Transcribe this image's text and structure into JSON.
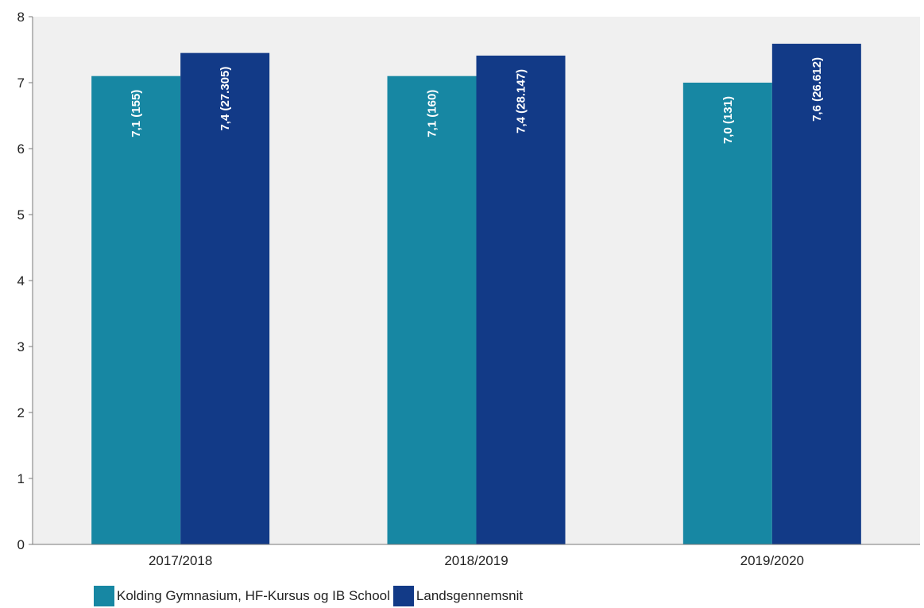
{
  "chart_data": {
    "type": "bar",
    "categories": [
      "2017/2018",
      "2018/2019",
      "2019/2020"
    ],
    "ylim": [
      0,
      8
    ],
    "yticks": [
      "0",
      "1",
      "2",
      "3",
      "4",
      "5",
      "6",
      "7",
      "8"
    ],
    "grid": false,
    "legend_position": "bottom-left",
    "series": [
      {
        "name": "Kolding Gymnasium, HF-Kursus og IB School",
        "color": "#1787a3",
        "values": [
          7.1,
          7.1,
          7.0
        ],
        "labels": [
          "7,1 (155)",
          "7,1 (160)",
          "7,0 (131)"
        ]
      },
      {
        "name": "Landsgennemsnit",
        "color": "#123a87",
        "values": [
          7.45,
          7.41,
          7.59
        ],
        "labels": [
          "7,4 (27.305)",
          "7,4 (28.147)",
          "7,6 (26.612)"
        ]
      }
    ]
  }
}
